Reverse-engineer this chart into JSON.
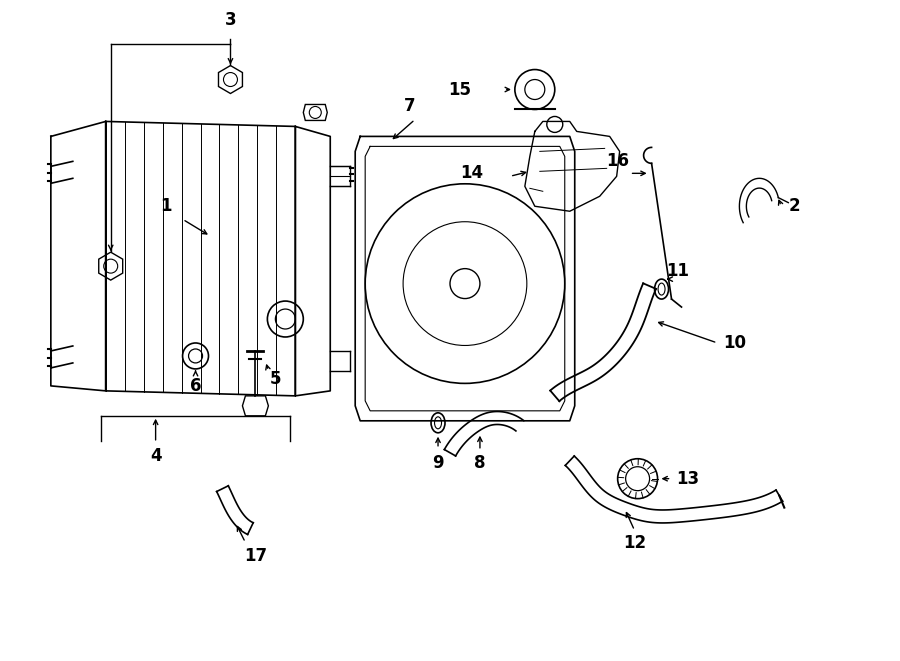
{
  "bg_color": "#ffffff",
  "line_color": "#000000",
  "fig_width": 9.0,
  "fig_height": 6.61,
  "dpi": 100,
  "xlim": [
    0,
    9
  ],
  "ylim": [
    0,
    6.61
  ]
}
